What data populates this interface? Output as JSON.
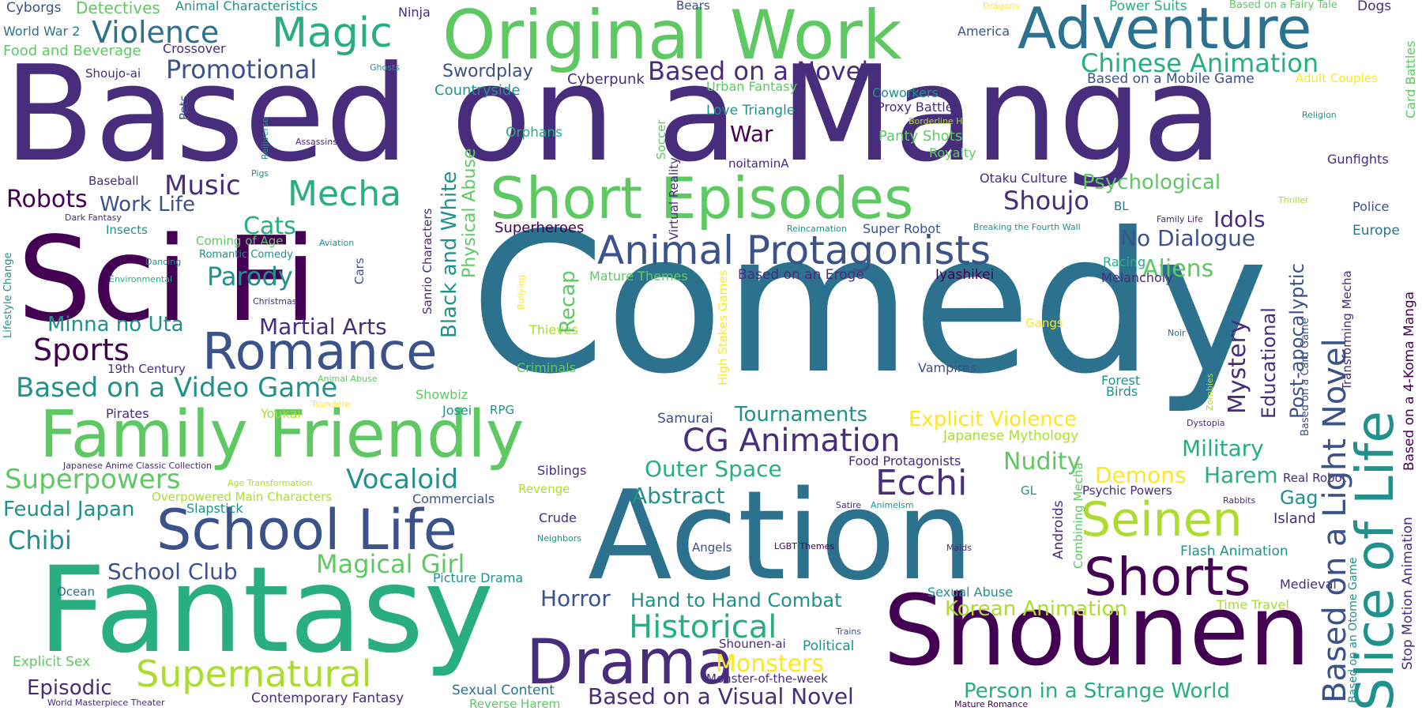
{
  "palette": {
    "indigo": "#440154",
    "purple": "#472d7b",
    "slate": "#3b528b",
    "blue": "#2c728e",
    "teal": "#21918c",
    "sea": "#28ae80",
    "green": "#5ec962",
    "lime": "#addc30",
    "yellow": "#fde725"
  },
  "words": {
    "based_on_a_manga": "Based on a Manga",
    "comedy": "Comedy",
    "action": "Action",
    "fantasy": "Fantasy",
    "shounen": "Shounen",
    "sci_fi": "Sci Fi",
    "original_work": "Original Work",
    "adventure": "Adventure",
    "short_episodes": "Short Episodes",
    "family_friendly": "Family Friendly",
    "school_life": "School Life",
    "slice_of_life": "Slice of Life",
    "romance": "Romance",
    "drama": "Drama",
    "animal_protagonists": "Animal Protagonists",
    "supernatural": "Supernatural",
    "seinen": "Seinen",
    "shorts": "Shorts",
    "based_on_a_light_novel": "Based on a Light Novel",
    "magic": "Magic",
    "violence": "Violence",
    "mecha": "Mecha",
    "cg_animation": "CG Animation",
    "ecchi": "Ecchi",
    "historical": "Historical",
    "chinese_animation": "Chinese Animation",
    "based_on_a_novel": "Based on a Novel",
    "promotional": "Promotional",
    "superpowers": "Superpowers",
    "vocaloid": "Vocaloid",
    "based_on_a_video_game": "Based on a Video Game",
    "horror": "Horror",
    "hand_to_hand_combat": "Hand to Hand Combat",
    "korean_animation": "Korean Animation",
    "person_in_a_strange_world": "Person in a Strange World",
    "based_on_a_visual_novel": "Based on a Visual Novel",
    "monsters": "Monsters",
    "mystery": "Mystery",
    "post_apocalyptic": "Post-apocalyptic",
    "shoujo": "Shoujo",
    "psychological": "Psychological",
    "idols": "Idols",
    "no_dialogue": "No Dialogue",
    "aliens": "Aliens",
    "military": "Military",
    "nudity": "Nudity",
    "demons": "Demons",
    "harem": "Harem",
    "explicit_violence": "Explicit Violence",
    "outer_space": "Outer Space",
    "tournaments": "Tournaments",
    "abstract": "Abstract",
    "magical_girl": "Magical Girl",
    "parody": "Parody",
    "martial_arts": "Martial Arts",
    "sports": "Sports",
    "music": "Music",
    "robots": "Robots",
    "work_life": "Work Life",
    "cats": "Cats",
    "minna_no_uta": "Minna no Uta",
    "chibi": "Chibi",
    "school_club": "School Club",
    "feudal_japan": "Feudal Japan",
    "episodic": "Episodic",
    "war": "War",
    "swordplay": "Swordplay",
    "countryside": "Countryside",
    "black_and_white": "Black and White",
    "physical_abuse": "Physical Abuse",
    "recap": "Recap",
    "educational": "Educational",
    "gag": "Gag",
    "based_on_a_mobile_game": "Based on a Mobile Game",
    "stop_motion_animation": "Stop Motion Animation",
    "based_on_a_4_koma_manga": "Based on a 4-Koma Manga",
    "cyborgs": "Cyborgs",
    "detectives": "Detectives",
    "animal_characteristics": "Animal Characteristics",
    "ninja": "Ninja",
    "bears": "Bears",
    "dragons": "Dragons",
    "power_suits": "Power Suits",
    "based_on_a_fairy_tale": "Based on a Fairy Tale",
    "dogs": "Dogs",
    "world_war_2": "World War 2",
    "food_and_beverage": "Food and Beverage",
    "crossover": "Crossover",
    "america": "America",
    "card_battles": "Card Battles",
    "shoujo_ai": "Shoujo-ai",
    "ghosts": "Ghosts",
    "cyberpunk": "Cyberpunk",
    "urban_fantasy": "Urban Fantasy",
    "coworkers": "Coworkers",
    "adult_couples": "Adult Couples",
    "pets": "Pets",
    "orphans": "Orphans",
    "love_triangle": "Love Triangle",
    "proxy_battles": "Proxy Battles",
    "borderline_h": "Borderline H",
    "religion": "Religion",
    "assassins": "Assassins",
    "reijiverse": "Reijiverse",
    "soccer": "Soccer",
    "virtual_reality": "Virtual Reality",
    "panty_shots": "Panty Shots",
    "royalty": "Royalty",
    "noitamina": "noitaminA",
    "otaku_culture": "Otaku Culture",
    "gunfights": "Gunfights",
    "baseball": "Baseball",
    "pigs": "Pigs",
    "thriller": "Thriller",
    "bl": "BL",
    "police": "Police",
    "family_life": "Family Life",
    "dark_fantasy": "Dark Fantasy",
    "lifestyle_change": "Lifestyle Change",
    "insects": "Insects",
    "sanrio_characters": "Sanrio Characters",
    "superheroes": "Superheroes",
    "reincarnation": "Reincarnation",
    "super_robot": "Super Robot",
    "breaking_the_fourth_wall": "Breaking the Fourth Wall",
    "europe": "Europe",
    "coming_of_age": "Coming of Age",
    "aviation": "Aviation",
    "romantic_comedy": "Romantic Comedy",
    "dancing": "Dancing",
    "environmental": "Environmental",
    "cars": "Cars",
    "christmas": "Christmas",
    "racing": "Racing",
    "mature_themes": "Mature Themes",
    "based_on_an_eroge": "Based on an Eroge",
    "iyashikei": "Iyashikei",
    "melancholy": "Melancholy",
    "transforming_mecha": "Transforming Mecha",
    "high_stakes_games": "High Stakes Games",
    "bullying": "Bullying",
    "thieves": "Thieves",
    "gangs": "Gangs",
    "noir": "Noir",
    "nineteenth_century": "19th Century",
    "criminals": "Criminals",
    "vampires": "Vampires",
    "forest": "Forest",
    "birds": "Birds",
    "animal_abuse": "Animal Abuse",
    "tsundere": "Tsundere",
    "showbiz": "Showbiz",
    "zombies": "Zombies",
    "pirates": "Pirates",
    "youkai": "Youkai",
    "josei": "Josei",
    "rpg": "RPG",
    "samurai": "Samurai",
    "dystopia": "Dystopia",
    "based_on_a_card_game": "Based on a Card Game",
    "japanese_mythology": "Japanese Mythology",
    "japanese_anime_classic_collection": "Japanese Anime Classic Collection",
    "age_transformation": "Age Transformation",
    "siblings": "Siblings",
    "food_protagonists": "Food Protagonists",
    "real_robot": "Real Robot",
    "overpowered_main_characters": "Overpowered Main Characters",
    "revenge": "Revenge",
    "commercials": "Commercials",
    "gl": "GL",
    "psychic_powers": "Psychic Powers",
    "androids": "Androids",
    "combining_mecha": "Combining Mecha",
    "satire": "Satire",
    "animeism": "Animeism",
    "rabbits": "Rabbits",
    "slapstick": "Slapstick",
    "crude": "Crude",
    "island": "Island",
    "neighbors": "Neighbors",
    "angels": "Angels",
    "lgbt_themes": "LGBT Themes",
    "maids": "Maids",
    "flash_animation": "Flash Animation",
    "based_on_an_otome_game": "Based on an Otome Game",
    "medieval": "Medieval",
    "picture_drama": "Picture Drama",
    "ocean": "Ocean",
    "sexual_abuse": "Sexual Abuse",
    "time_travel": "Time Travel",
    "trains": "Trains",
    "explicit_sex": "Explicit Sex",
    "shounen_ai": "Shounen-ai",
    "political": "Political",
    "monster_of_the_week": "Monster-of-the-week",
    "sexual_content": "Sexual Content",
    "contemporary_fantasy": "Contemporary Fantasy",
    "reverse_harem": "Reverse Harem",
    "world_masterpiece_theater": "World Masterpiece Theater",
    "mature_romance": "Mature Romance"
  }
}
